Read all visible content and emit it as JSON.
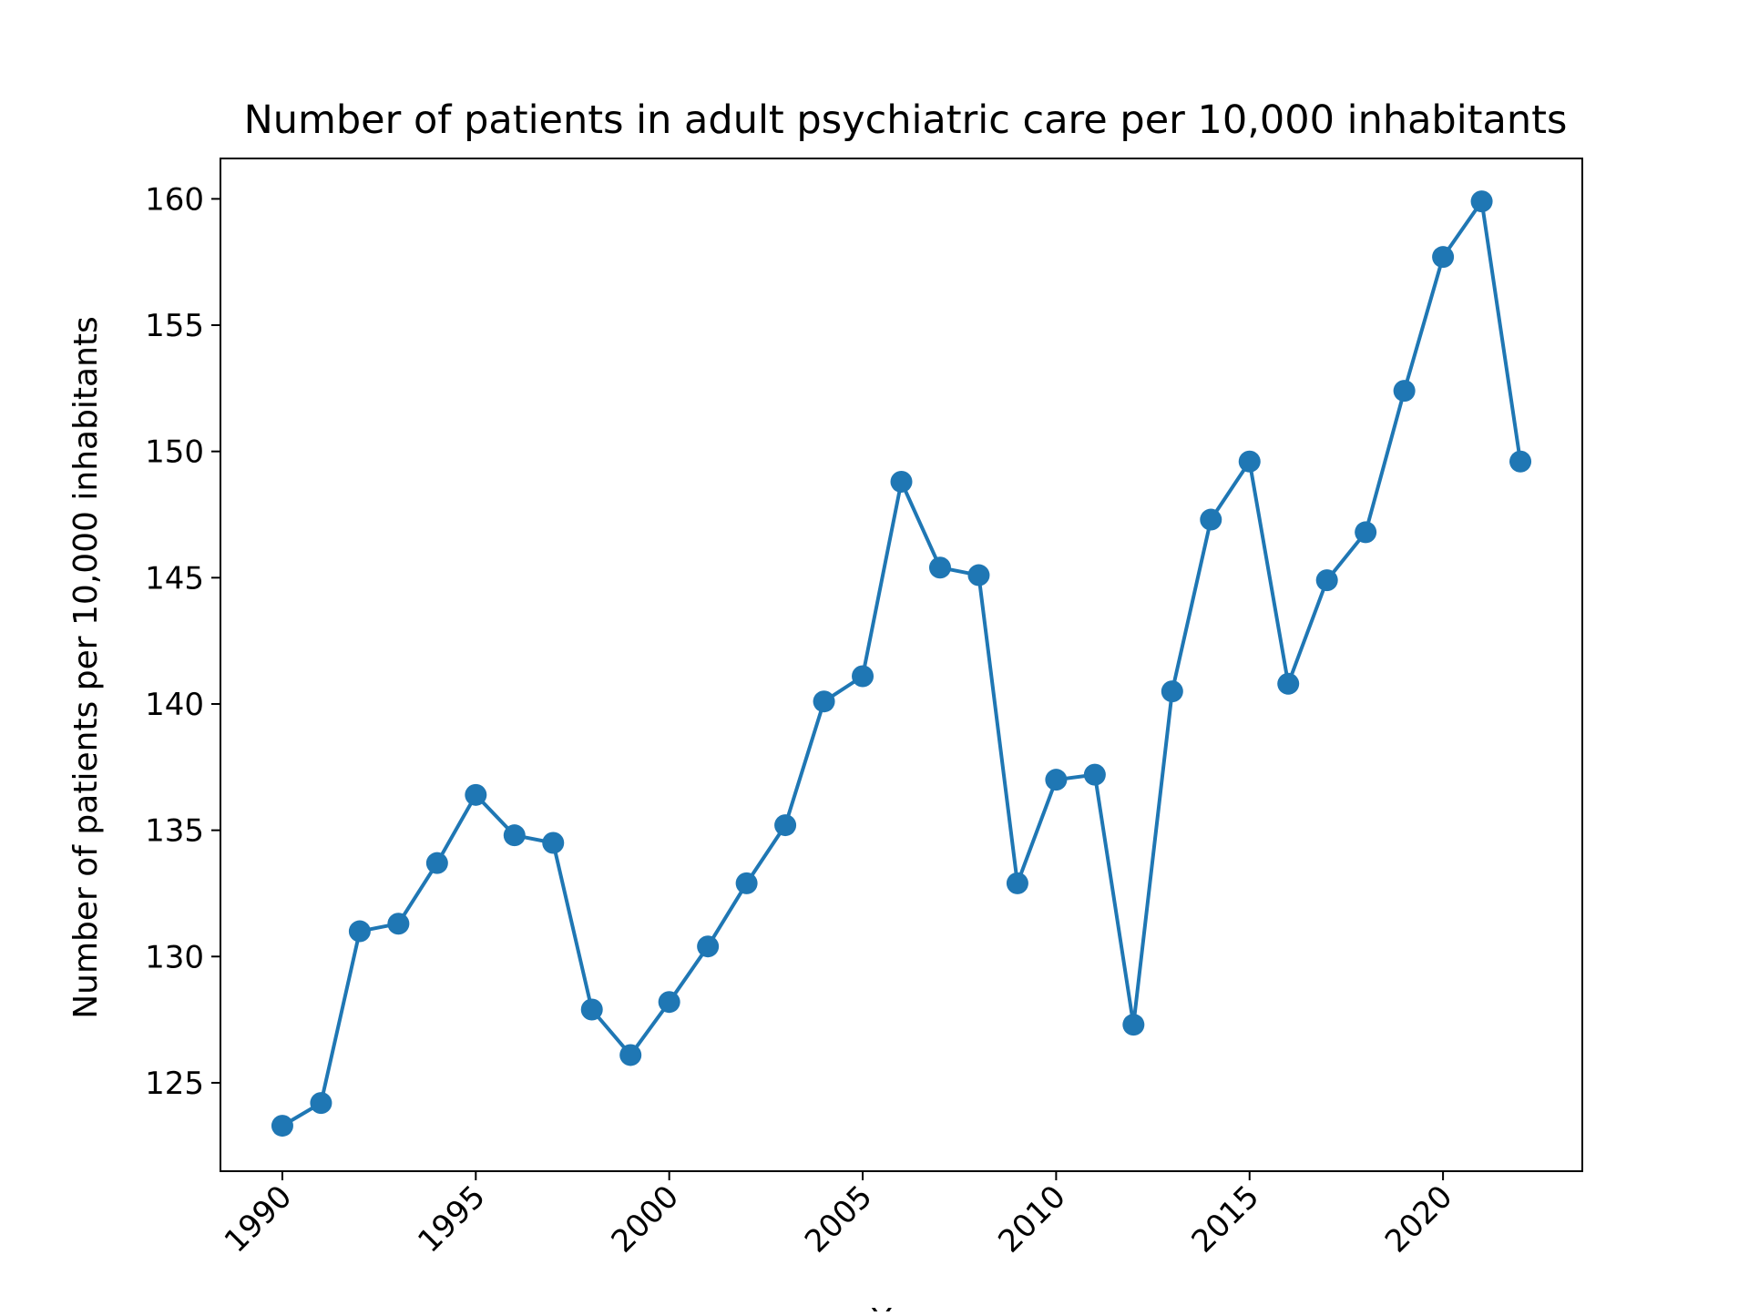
{
  "chart_data": {
    "type": "line",
    "title": "Number of patients in adult psychiatric care per 10,000 inhabitants",
    "xlabel": "Year",
    "ylabel": "Number of patients per 10,000 inhabitants",
    "xlim": [
      1988.4,
      2023.6
    ],
    "ylim": [
      121.5,
      161.6
    ],
    "xticks": [
      1990,
      1995,
      2000,
      2005,
      2010,
      2015,
      2020
    ],
    "yticks": [
      125,
      130,
      135,
      140,
      145,
      150,
      155,
      160
    ],
    "grid": false,
    "legend": "none",
    "series": [
      {
        "color": "#1f77b4",
        "marker": "circle",
        "x": [
          1990,
          1991,
          1992,
          1993,
          1994,
          1995,
          1996,
          1997,
          1998,
          1999,
          2000,
          2001,
          2002,
          2003,
          2004,
          2005,
          2006,
          2007,
          2008,
          2009,
          2010,
          2011,
          2012,
          2013,
          2014,
          2015,
          2016,
          2017,
          2018,
          2019,
          2020,
          2021,
          2022
        ],
        "values": [
          123.3,
          124.2,
          131.0,
          131.3,
          133.7,
          136.4,
          134.8,
          134.5,
          127.9,
          126.1,
          128.2,
          130.4,
          132.9,
          135.2,
          140.1,
          141.1,
          148.8,
          145.4,
          145.1,
          132.9,
          137.0,
          137.2,
          127.3,
          140.5,
          147.3,
          149.6,
          140.8,
          144.9,
          146.8,
          152.4,
          157.7,
          159.9,
          149.6
        ]
      }
    ]
  }
}
